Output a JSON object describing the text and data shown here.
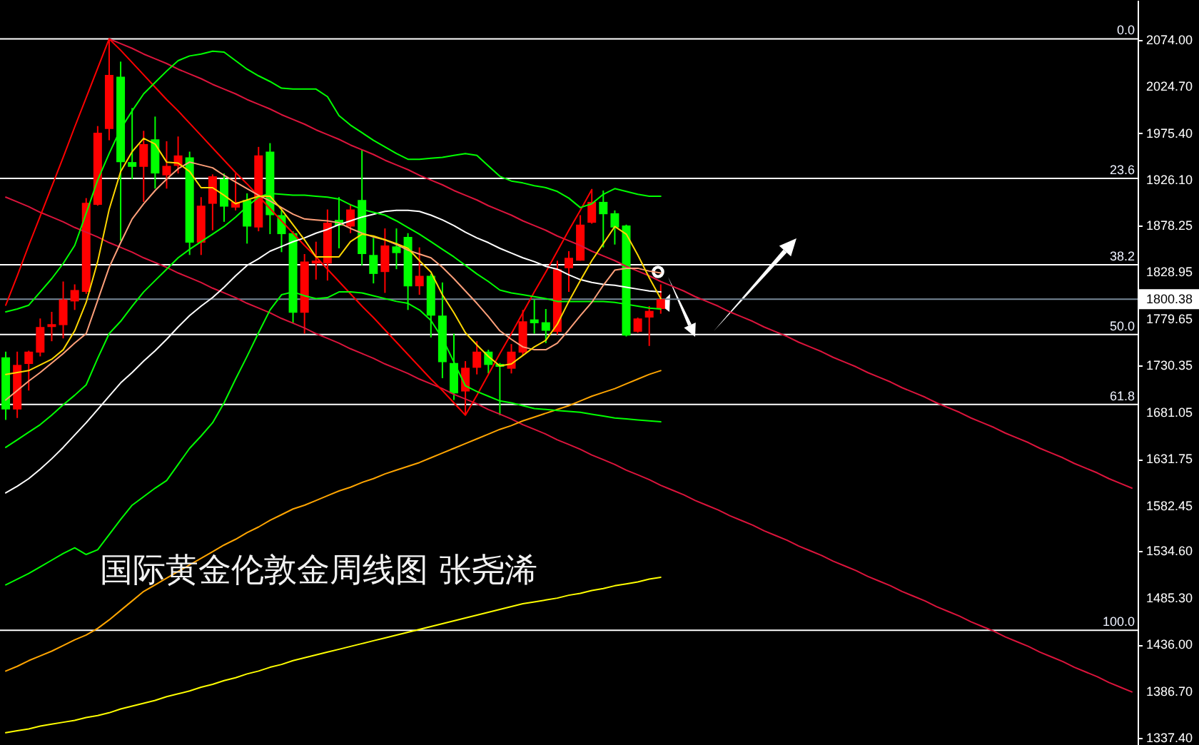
{
  "chart_data": {
    "type": "candlestick",
    "title": "国际黄金伦敦金周线图 张尧浠",
    "categories": [
      null,
      null,
      null,
      null,
      null,
      null,
      null,
      null,
      null,
      null,
      null,
      null,
      null,
      null,
      null,
      null,
      null,
      null,
      null,
      null,
      null,
      null,
      null,
      null,
      null,
      null,
      null,
      null,
      null,
      null,
      null,
      null,
      null,
      null,
      null,
      null,
      null,
      null,
      null,
      null,
      null,
      null,
      null,
      null,
      null,
      null,
      null,
      null,
      null,
      null,
      null,
      null,
      null,
      null,
      null,
      null,
      null,
      null,
      null,
      null,
      null,
      null,
      null,
      null,
      null,
      null,
      null,
      null,
      null,
      null,
      null,
      null,
      null,
      null,
      null,
      null,
      null,
      null,
      null,
      null,
      null,
      null,
      null,
      null,
      null,
      null,
      null,
      null,
      null,
      null,
      null,
      null,
      null,
      null,
      null,
      null,
      null,
      null,
      null
    ],
    "ohlc": [
      [
        1739,
        1745,
        1673,
        1684
      ],
      [
        1684,
        1745,
        1675,
        1731
      ],
      [
        1732,
        1746,
        1704,
        1745
      ],
      [
        1744,
        1780,
        1740,
        1771
      ],
      [
        1771,
        1787,
        1756,
        1774
      ],
      [
        1773,
        1819,
        1759,
        1800
      ],
      [
        1798,
        1816,
        1789,
        1810
      ],
      [
        1808,
        1907,
        1806,
        1902
      ],
      [
        1900,
        1983,
        1899,
        1976
      ],
      [
        1980,
        2075,
        1968,
        2037
      ],
      [
        2035,
        2051,
        1862,
        1945
      ],
      [
        1945,
        2002,
        1927,
        1940
      ],
      [
        1940,
        1978,
        1903,
        1964
      ],
      [
        1969,
        1993,
        1917,
        1933
      ],
      [
        1931,
        1967,
        1917,
        1941
      ],
      [
        1941,
        1972,
        1933,
        1952
      ],
      [
        1950,
        1956,
        1847,
        1860
      ],
      [
        1860,
        1908,
        1847,
        1899
      ],
      [
        1901,
        1932,
        1873,
        1930
      ],
      [
        1927,
        1933,
        1882,
        1898
      ],
      [
        1897,
        1933,
        1894,
        1903
      ],
      [
        1905,
        1912,
        1859,
        1877
      ],
      [
        1876,
        1961,
        1872,
        1952
      ],
      [
        1956,
        1965,
        1869,
        1889
      ],
      [
        1889,
        1894,
        1850,
        1869
      ],
      [
        1870,
        1872,
        1775,
        1786
      ],
      [
        1786,
        1848,
        1764,
        1840
      ],
      [
        1838,
        1861,
        1821,
        1841
      ],
      [
        1838,
        1895,
        1820,
        1881
      ],
      [
        1884,
        1908,
        1854,
        1878
      ],
      [
        1877,
        1900,
        1870,
        1895
      ],
      [
        1905,
        1958,
        1836,
        1848
      ],
      [
        1847,
        1865,
        1817,
        1827
      ],
      [
        1829,
        1875,
        1807,
        1857
      ],
      [
        1856,
        1875,
        1832,
        1849
      ],
      [
        1866,
        1870,
        1789,
        1814
      ],
      [
        1814,
        1855,
        1805,
        1825
      ],
      [
        1825,
        1827,
        1760,
        1783
      ],
      [
        1783,
        1818,
        1717,
        1734
      ],
      [
        1733,
        1764,
        1694,
        1701
      ],
      [
        1703,
        1735,
        1678,
        1728
      ],
      [
        1728,
        1756,
        1721,
        1745
      ],
      [
        1745,
        1747,
        1722,
        1731
      ],
      [
        1732,
        1733,
        1678,
        1729
      ],
      [
        1727,
        1753,
        1722,
        1745
      ],
      [
        1744,
        1789,
        1741,
        1777
      ],
      [
        1779,
        1800,
        1764,
        1775
      ],
      [
        1776,
        1790,
        1754,
        1767
      ],
      [
        1766,
        1841,
        1763,
        1832
      ],
      [
        1833,
        1851,
        1808,
        1844
      ],
      [
        1841,
        1889,
        1841,
        1879
      ],
      [
        1881,
        1916,
        1880,
        1903
      ],
      [
        1903,
        1915,
        1855,
        1890
      ],
      [
        1891,
        1894,
        1858,
        1876
      ],
      [
        1878,
        1879,
        1761,
        1762
      ],
      [
        1766,
        1781,
        1765,
        1780
      ],
      [
        1781,
        1793,
        1751,
        1788
      ],
      [
        1790,
        1816,
        1785,
        1800.38
      ],
      null,
      null,
      null,
      null,
      null,
      null,
      null,
      null,
      null,
      null,
      null,
      null,
      null,
      null,
      null,
      null,
      null,
      null,
      null,
      null,
      null,
      null,
      null,
      null,
      null,
      null,
      null,
      null,
      null,
      null,
      null,
      null,
      null,
      null,
      null,
      null,
      null,
      null,
      null,
      null,
      null
    ],
    "colors": [
      "#00ff00",
      "#ff0000",
      "#ff0000",
      "#ff0000",
      "#ff0000",
      "#ff0000",
      "#ff0000",
      "#ff0000",
      "#ff0000",
      "#ff0000",
      "#00ff00",
      "#00ff00",
      "#ff0000",
      "#00ff00",
      "#ff0000",
      "#ff0000",
      "#00ff00",
      "#ff0000",
      "#ff0000",
      "#00ff00",
      "#ff0000",
      "#00ff00",
      "#ff0000",
      "#00ff00",
      "#00ff00",
      "#00ff00",
      "#ff0000",
      "#ff0000",
      "#ff0000",
      "#00ff00",
      "#ff0000",
      "#00ff00",
      "#00ff00",
      "#ff0000",
      "#00ff00",
      "#00ff00",
      "#ff0000",
      "#00ff00",
      "#00ff00",
      "#00ff00",
      "#ff0000",
      "#ff0000",
      "#00ff00",
      "#00ff00",
      "#ff0000",
      "#ff0000",
      "#00ff00",
      "#00ff00",
      "#ff0000",
      "#ff0000",
      "#ff0000",
      "#ff0000",
      "#00ff00",
      "#00ff00",
      "#00ff00",
      "#ff0000",
      "#ff0000",
      "#ff0000",
      null,
      null,
      null,
      null,
      null,
      null,
      null,
      null,
      null,
      null,
      null,
      null,
      null,
      null,
      null,
      null,
      null,
      null,
      null,
      null,
      null,
      null,
      null,
      null,
      null,
      null,
      null,
      null,
      null,
      null,
      null,
      null,
      null,
      null,
      null,
      null,
      null,
      null,
      null,
      null,
      null
    ],
    "series": [
      {
        "type": "line",
        "color": "#dc143c",
        "values": [
          1908,
          1903,
          1898,
          1892,
          1887,
          1882,
          1876,
          1871,
          1866,
          1860,
          1855,
          1850,
          1844,
          1839,
          1834,
          1828,
          1823,
          1818,
          1812,
          1807,
          1802,
          1796,
          1791,
          1786,
          1780,
          1775,
          1770,
          1764,
          1759,
          1754,
          1748,
          1743,
          1738,
          1732,
          1727,
          1722,
          1716,
          1711,
          1706,
          1700,
          1695,
          1690,
          1684,
          1679,
          1674,
          1668,
          1663,
          1658,
          1652,
          1647,
          1642,
          1636,
          1631,
          1626,
          1620,
          1615,
          1610,
          1604,
          1599,
          1594,
          1588,
          1583,
          1578,
          1572,
          1567,
          1562,
          1556,
          1551,
          1546,
          1540,
          1535,
          1530,
          1524,
          1519,
          1514,
          1508,
          1503,
          1498,
          1492,
          1487,
          1482,
          1476,
          1471,
          1466,
          1460,
          1455,
          1450,
          1444,
          1439,
          1434,
          1428,
          1423,
          1418,
          1412,
          1407,
          1402,
          1396,
          1391,
          1386
        ]
      },
      {
        "type": "line",
        "color": "#dc143c",
        "values": [
          null,
          null,
          null,
          null,
          null,
          null,
          null,
          null,
          null,
          2075,
          2070,
          2065,
          2059,
          2054,
          2049,
          2043,
          2038,
          2033,
          2027,
          2022,
          2017,
          2011,
          2006,
          2001,
          1995,
          1990,
          1985,
          1979,
          1974,
          1969,
          1963,
          1958,
          1953,
          1947,
          1942,
          1937,
          1931,
          1926,
          1921,
          1915,
          1910,
          1905,
          1899,
          1894,
          1889,
          1883,
          1878,
          1873,
          1867,
          1862,
          1857,
          1851,
          1846,
          1841,
          1835,
          1830,
          1825,
          1819,
          1814,
          1809,
          1803,
          1798,
          1793,
          1787,
          1782,
          1777,
          1771,
          1766,
          1761,
          1755,
          1750,
          1745,
          1739,
          1734,
          1729,
          1723,
          1718,
          1713,
          1707,
          1702,
          1697,
          1691,
          1686,
          1681,
          1675,
          1670,
          1665,
          1659,
          1654,
          1649,
          1643,
          1638,
          1633,
          1627,
          1622,
          1617,
          1611,
          1606,
          1601
        ]
      },
      {
        "type": "line",
        "color": "#ff0000",
        "values": [
          1794,
          1825,
          1857,
          1888,
          1919,
          1950,
          1982,
          2013,
          2044,
          2075,
          2063,
          2050,
          2037,
          2024,
          2011,
          1999,
          1986,
          1973,
          1960,
          1947,
          1934,
          1922,
          1909,
          1896,
          1883,
          1870,
          1857,
          1845,
          1832,
          1819,
          1806,
          1793,
          1781,
          1768,
          1755,
          1742,
          1729,
          1716,
          1704,
          1691,
          1678,
          1699,
          1721,
          1743,
          1764,
          1786,
          1808,
          1829,
          1851,
          1873,
          1894,
          1916,
          null,
          null,
          null,
          null,
          null,
          null,
          null,
          null,
          null,
          null,
          null,
          null,
          null,
          null,
          null,
          null,
          null,
          null,
          null,
          null,
          null,
          null,
          null,
          null,
          null,
          null,
          null,
          null,
          null,
          null,
          null,
          null,
          null,
          null,
          null,
          null,
          null,
          null,
          null,
          null,
          null,
          null,
          null,
          null,
          null,
          null,
          null
        ]
      },
      {
        "type": "line",
        "color": "#ffff00",
        "values": [
          1343,
          1345,
          1347,
          1350,
          1352,
          1354,
          1356,
          1359,
          1361,
          1364,
          1368,
          1371,
          1374,
          1377,
          1381,
          1384,
          1387,
          1391,
          1394,
          1398,
          1401,
          1405,
          1408,
          1412,
          1415,
          1419,
          1422,
          1425,
          1428,
          1431,
          1434,
          1437,
          1440,
          1443,
          1446,
          1449,
          1452,
          1455,
          1458,
          1461,
          1464,
          1467,
          1470,
          1473,
          1476,
          1479,
          1481,
          1483,
          1485,
          1488,
          1490,
          1493,
          1495,
          1498,
          1500,
          1502,
          1505,
          1507,
          null,
          null,
          null,
          null,
          null,
          null,
          null,
          null,
          null,
          null,
          null,
          null,
          null,
          null,
          null,
          null,
          null,
          null,
          null,
          null,
          null,
          null,
          null,
          null,
          null,
          null,
          null,
          null,
          null,
          null,
          null,
          null,
          null,
          null,
          null,
          null,
          null,
          null,
          null,
          null,
          null
        ]
      },
      {
        "type": "line",
        "color": "#ffa500",
        "values": [
          1408,
          1413,
          1419,
          1424,
          1429,
          1435,
          1441,
          1446,
          1453,
          1462,
          1472,
          1482,
          1492,
          1499,
          1506,
          1513,
          1520,
          1527,
          1534,
          1541,
          1547,
          1554,
          1560,
          1567,
          1573,
          1579,
          1583,
          1588,
          1593,
          1598,
          1602,
          1607,
          1611,
          1616,
          1620,
          1624,
          1628,
          1633,
          1638,
          1643,
          1648,
          1653,
          1658,
          1663,
          1667,
          1672,
          1676,
          1680,
          1684,
          1688,
          1693,
          1698,
          1702,
          1706,
          1711,
          1716,
          1721,
          1725,
          null,
          null,
          null,
          null,
          null,
          null,
          null,
          null,
          null,
          null,
          null,
          null,
          null,
          null,
          null,
          null,
          null,
          null,
          null,
          null,
          null,
          null,
          null,
          null,
          null,
          null,
          null,
          null,
          null,
          null,
          null,
          null,
          null,
          null,
          null,
          null,
          null,
          null,
          null,
          null,
          null
        ]
      },
      {
        "type": "line",
        "color": "#ffffff",
        "values": [
          1596,
          1603,
          1611,
          1621,
          1632,
          1644,
          1657,
          1670,
          1684,
          1698,
          1712,
          1723,
          1735,
          1746,
          1758,
          1771,
          1783,
          1793,
          1802,
          1813,
          1825,
          1836,
          1843,
          1851,
          1856,
          1861,
          1865,
          1870,
          1874,
          1879,
          1883,
          1887,
          1890,
          1893,
          1894,
          1894,
          1893,
          1889,
          1884,
          1878,
          1871,
          1865,
          1860,
          1854,
          1849,
          1844,
          1840,
          1835,
          1832,
          1826,
          1821,
          1818,
          1816,
          1815,
          1813,
          1811,
          1809,
          1808,
          null,
          null,
          null,
          null,
          null,
          null,
          null,
          null,
          null,
          null,
          null,
          null,
          null,
          null,
          null,
          null,
          null,
          null,
          null,
          null,
          null,
          null,
          null,
          null,
          null,
          null,
          null,
          null,
          null,
          null,
          null,
          null,
          null,
          null,
          null,
          null,
          null,
          null,
          null,
          null,
          null
        ]
      },
      {
        "type": "line",
        "color": "#00ff00",
        "values": [
          1499,
          1505,
          1511,
          1518,
          1525,
          1532,
          1538,
          1531,
          1536,
          1552,
          1568,
          1583,
          1592,
          1601,
          1609,
          1626,
          1643,
          1656,
          1670,
          1691,
          1716,
          1740,
          1765,
          1789,
          1805,
          1808,
          1804,
          1801,
          1802,
          1808,
          1808,
          1807,
          1804,
          1801,
          1798,
          1796,
          1789,
          1778,
          1759,
          1734,
          1709,
          1703,
          1698,
          1693,
          1691,
          1688,
          1685,
          1684,
          1683,
          1682,
          1681,
          1679,
          1677,
          1675,
          1674,
          1673,
          1672,
          1671,
          null,
          null,
          null,
          null,
          null,
          null,
          null,
          null,
          null,
          null,
          null,
          null,
          null,
          null,
          null,
          null,
          null,
          null,
          null,
          null,
          null,
          null,
          null,
          null,
          null,
          null,
          null,
          null,
          null,
          null,
          null,
          null,
          null,
          null,
          null,
          null,
          null,
          null,
          null,
          null,
          null
        ]
      },
      {
        "type": "line",
        "color": "#00ff00",
        "values": [
          1644,
          1652,
          1660,
          1668,
          1678,
          1689,
          1699,
          1710,
          1738,
          1764,
          1777,
          1793,
          1808,
          1820,
          1832,
          1844,
          1853,
          1861,
          1869,
          1877,
          1887,
          1898,
          1908,
          1912,
          1911,
          1910,
          1910,
          1909,
          1908,
          1906,
          1900,
          1895,
          1892,
          1889,
          1883,
          1876,
          1869,
          1861,
          1853,
          1845,
          1836,
          1827,
          1819,
          1810,
          1807,
          1805,
          1803,
          1801,
          1798,
          1798,
          1798,
          1798,
          1798,
          1797,
          1795,
          1793,
          1791,
          1790,
          null,
          null,
          null,
          null,
          null,
          null,
          null,
          null,
          null,
          null,
          null,
          null,
          null,
          null,
          null,
          null,
          null,
          null,
          null,
          null,
          null,
          null,
          null,
          null,
          null,
          null,
          null,
          null,
          null,
          null,
          null,
          null,
          null,
          null,
          null,
          null,
          null,
          null,
          null,
          null,
          null
        ]
      },
      {
        "type": "line",
        "color": "#00ff00",
        "values": [
          1787,
          1790,
          1794,
          1808,
          1822,
          1838,
          1857,
          1891,
          1926,
          1954,
          1980,
          1999,
          2017,
          2029,
          2041,
          2052,
          2057,
          2059,
          2062,
          2061,
          2052,
          2043,
          2036,
          2030,
          2023,
          2022,
          2022,
          2022,
          2014,
          1994,
          1984,
          1976,
          1968,
          1961,
          1954,
          1948,
          1948,
          1949,
          1950,
          1952,
          1954,
          1952,
          1941,
          1930,
          1925,
          1923,
          1920,
          1918,
          1914,
          1907,
          1897,
          1901,
          1911,
          1917,
          1914,
          1911,
          1909,
          1909,
          null,
          null,
          null,
          null,
          null,
          null,
          null,
          null,
          null,
          null,
          null,
          null,
          null,
          null,
          null,
          null,
          null,
          null,
          null,
          null,
          null,
          null,
          null,
          null,
          null,
          null,
          null,
          null,
          null,
          null,
          null,
          null,
          null,
          null,
          null,
          null,
          null,
          null,
          null,
          null,
          null
        ]
      },
      {
        "type": "line",
        "color": "#ffa07a",
        "values": [
          1694,
          1704,
          1714,
          1723,
          1733,
          1743,
          1754,
          1764,
          1799,
          1834,
          1860,
          1885,
          1901,
          1915,
          1927,
          1938,
          1945,
          1942,
          1939,
          1931,
          1924,
          1917,
          1910,
          1904,
          1897,
          1890,
          1885,
          1884,
          1883,
          1881,
          1875,
          1870,
          1866,
          1863,
          1858,
          1852,
          1848,
          1844,
          1834,
          1822,
          1809,
          1796,
          1782,
          1767,
          1758,
          1750,
          1747,
          1747,
          1754,
          1768,
          1783,
          1797,
          1815,
          1831,
          1833,
          1833,
          1830,
          1828,
          null,
          null,
          null,
          null,
          null,
          null,
          null,
          null,
          null,
          null,
          null,
          null,
          null,
          null,
          null,
          null,
          null,
          null,
          null,
          null,
          null,
          null,
          null,
          null,
          null,
          null,
          null,
          null,
          null,
          null,
          null,
          null,
          null,
          null,
          null,
          null,
          null,
          null,
          null,
          null,
          null
        ]
      },
      {
        "type": "line",
        "color": "#ffd700",
        "values": [
          1721,
          1723,
          1725,
          1731,
          1737,
          1747,
          1767,
          1797,
          1840,
          1895,
          1935,
          1956,
          1970,
          1964,
          1945,
          1944,
          1935,
          1918,
          1918,
          1910,
          1901,
          1905,
          1909,
          1909,
          1895,
          1879,
          1863,
          1845,
          1845,
          1845,
          1861,
          1869,
          1867,
          1863,
          1859,
          1854,
          1841,
          1829,
          1805,
          1786,
          1765,
          1752,
          1740,
          1730,
          1732,
          1741,
          1750,
          1757,
          1774,
          1798,
          1820,
          1841,
          1859,
          1877,
          1869,
          1847,
          1823,
          1801,
          null,
          null,
          null,
          null,
          null,
          null,
          null,
          null,
          null,
          null,
          null,
          null,
          null,
          null,
          null,
          null,
          null,
          null,
          null,
          null,
          null,
          null,
          null,
          null,
          null,
          null,
          null,
          null,
          null,
          null,
          null,
          null,
          null,
          null,
          null,
          null,
          null,
          null,
          null,
          null,
          null
        ]
      }
    ],
    "ylim": [
      1330,
      2116
    ],
    "yticks": [
      {
        "value": 2074,
        "label": "2074.00"
      },
      {
        "value": 2024.7,
        "label": "2024.70"
      },
      {
        "value": 1975.4,
        "label": "1975.40"
      },
      {
        "value": 1926.1,
        "label": "1926.10"
      },
      1878.25,
      1828.95,
      1800.38,
      1779.65,
      1730.35,
      1681.05,
      1631.75,
      1582.45,
      {
        "value": 1534.6,
        "label": "1534.60"
      },
      {
        "value": 1485.3,
        "label": "1485.30"
      },
      {
        "value": 1436,
        "label": "1436.00"
      },
      {
        "value": 1386.7,
        "label": "1386.70"
      },
      {
        "value": 1337.4,
        "label": "1337.40"
      }
    ],
    "ref_lines": [
      {
        "axis": "y",
        "value": 2075,
        "color": "#ffffff"
      },
      {
        "axis": "y",
        "value": 1927.7,
        "color": "#ffffff"
      },
      {
        "axis": "y",
        "value": 1836.6,
        "color": "#ffffff"
      },
      {
        "axis": "y",
        "value": 1763,
        "color": "#ffffff"
      },
      {
        "axis": "y",
        "value": 1689.4,
        "color": "#ffffff"
      },
      {
        "axis": "y",
        "value": 1451,
        "color": "#ffffff"
      },
      {
        "axis": "y",
        "value": 1800.38,
        "color": "#778899"
      }
    ],
    "annotations": [
      {
        "text": "0.0",
        "y": 2075
      },
      {
        "text": "23.6",
        "y": 1927.7
      },
      {
        "text": "38.2",
        "y": 1836.6
      },
      {
        "text": "50.0",
        "y": 1763
      },
      {
        "text": "61.8",
        "y": 1689.4
      },
      {
        "text": "100.0",
        "y": 1451
      }
    ],
    "tick_labels": "y"
  }
}
